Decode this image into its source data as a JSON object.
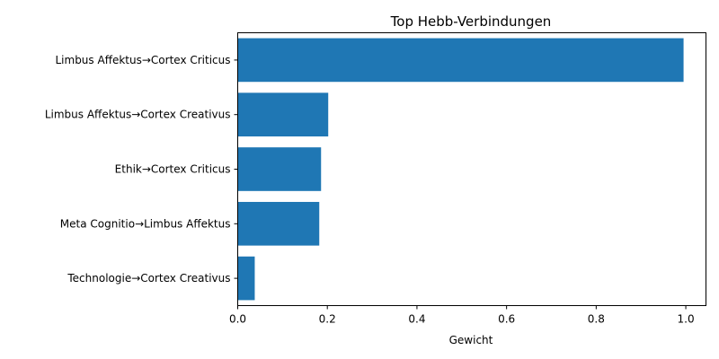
{
  "chart_data": {
    "type": "bar",
    "orientation": "horizontal",
    "title": "Top Hebb-Verbindungen",
    "xlabel": "Gewicht",
    "ylabel": "",
    "categories": [
      "Limbus Affektus→Cortex Criticus",
      "Limbus Affektus→Cortex Creativus",
      "Ethik→Cortex Criticus",
      "Meta Cognitio→Limbus Affektus",
      "Technologie→Cortex Creativus"
    ],
    "values": [
      0.995,
      0.202,
      0.186,
      0.182,
      0.038
    ],
    "xlim": [
      0,
      1.045
    ],
    "xticks": [
      0.0,
      0.2,
      0.4,
      0.6,
      0.8,
      1.0
    ],
    "xtick_labels": [
      "0.0",
      "0.2",
      "0.4",
      "0.6",
      "0.8",
      "1.0"
    ],
    "bar_color": "#1f77b4",
    "grid": false,
    "legend": "none"
  }
}
